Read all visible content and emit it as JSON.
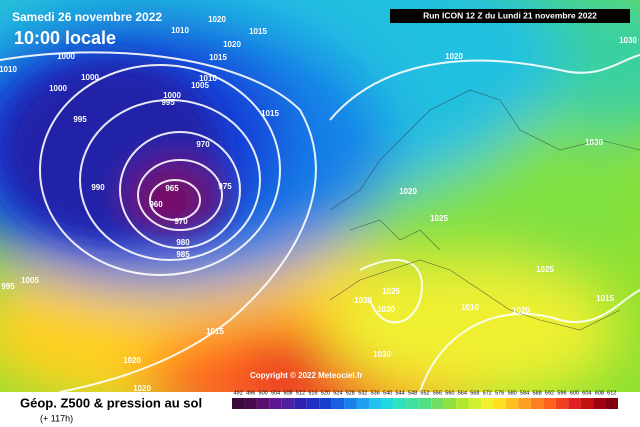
{
  "header": {
    "date": "Samedi 26 novembre 2022",
    "time": "10:00 locale",
    "run": "Run ICON 12 Z du Lundi 21 novembre 2022"
  },
  "copyright": "Copyright © 2022 Meteociel.fr",
  "footer": {
    "title": "Géop. Z500 & pression au sol",
    "lead": "(+ 117h)"
  },
  "isobar_labels": [
    1020,
    1010,
    1015,
    1020,
    1015,
    1010,
    1005,
    1000,
    1000,
    1000,
    995,
    995,
    1000,
    990,
    970,
    965,
    960,
    975,
    970,
    980,
    985,
    1015,
    1020,
    1030,
    1020,
    1025,
    1025,
    1030,
    1025,
    1030,
    1010,
    1020,
    1015,
    1015,
    1020,
    1020,
    1030,
    1030,
    995,
    1005,
    1010
  ],
  "scale": [
    492,
    496,
    500,
    504,
    508,
    512,
    516,
    520,
    524,
    528,
    532,
    536,
    540,
    544,
    548,
    552,
    556,
    560,
    564,
    568,
    572,
    576,
    580,
    584,
    588,
    592,
    596,
    600,
    604,
    608,
    612
  ]
}
